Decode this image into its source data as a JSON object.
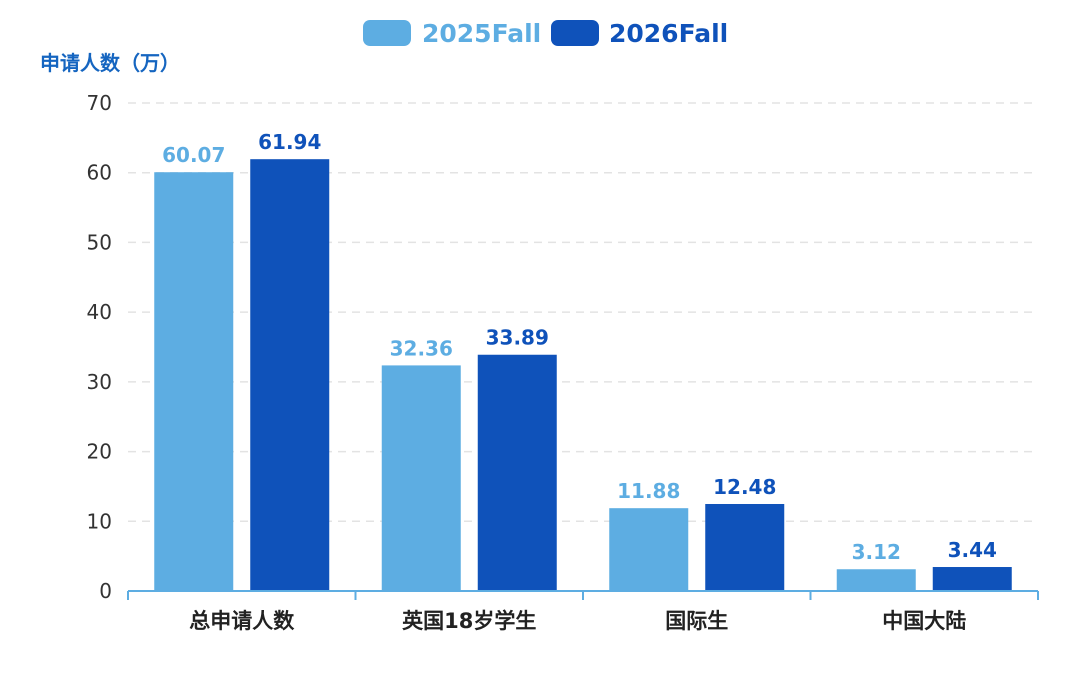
{
  "chart_data": {
    "type": "bar",
    "ylabel": "申请人数（万）",
    "ylim": [
      0,
      70
    ],
    "yticks": [
      0,
      10,
      20,
      30,
      40,
      50,
      60,
      70
    ],
    "grid": true,
    "legend_position": "top-center",
    "categories": [
      "总申请人数",
      "英国18岁学生",
      "国际生",
      "中国大陆"
    ],
    "series": [
      {
        "name": "2025Fall",
        "color": "#5DADE2",
        "values": [
          60.07,
          32.36,
          11.88,
          3.12
        ],
        "labels": [
          "60.07",
          "32.36",
          "11.88",
          "3.12"
        ]
      },
      {
        "name": "2026Fall",
        "color": "#0F52BA",
        "values": [
          61.94,
          33.89,
          12.48,
          3.44
        ],
        "labels": [
          "61.94",
          "33.89",
          "12.48",
          "3.44"
        ]
      }
    ],
    "colors": {
      "axis": "#5DADE2",
      "ylabel": "#1565C0",
      "grid": "#E3E3E3"
    }
  }
}
